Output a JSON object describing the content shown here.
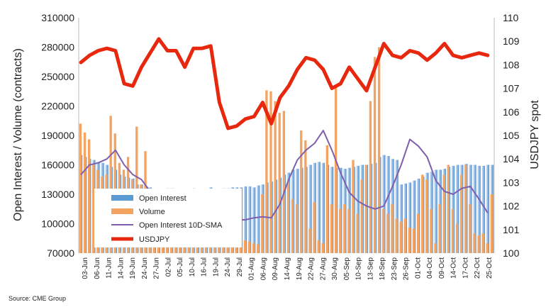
{
  "chart_data": {
    "type": "bar+line",
    "title": "",
    "ylabel_left": "Open Interest / Volume (contracts)",
    "ylabel_right": "USDJPY spot",
    "ylim_left": [
      70000,
      310000
    ],
    "ylim_right": [
      100,
      110
    ],
    "yticks_left": [
      "70000",
      "100000",
      "130000",
      "160000",
      "190000",
      "220000",
      "250000",
      "280000",
      "310000"
    ],
    "yticks_right": [
      "100",
      "101",
      "102",
      "103",
      "104",
      "105",
      "106",
      "107",
      "108",
      "109",
      "110"
    ],
    "x_tick_labels": [
      "03-Jun",
      "06-Jun",
      "11-Jun",
      "14-Jun",
      "19-Jun",
      "24-Jun",
      "27-Jun",
      "02-Jul",
      "05-Jul",
      "10-Jul",
      "16-Jul",
      "19-Jul",
      "24-Jul",
      "29-Jul",
      "01-Aug",
      "06-Aug",
      "09-Aug",
      "14-Aug",
      "19-Aug",
      "22-Aug",
      "27-Aug",
      "30-Aug",
      "05-Sep",
      "10-Sep",
      "13-Sep",
      "18-Sep",
      "23-Sep",
      "26-Sep",
      "01-Oct",
      "04-Oct",
      "09-Oct",
      "14-Oct",
      "17-Oct",
      "22-Oct",
      "25-Oct"
    ],
    "legend_placement": "lower-left",
    "series": [
      {
        "name": "Open Interest",
        "kind": "bar",
        "color": "#5b9bd5",
        "values": [
          170000,
          168000,
          166000,
          165000,
          163000,
          162000,
          160000,
          158000,
          155000,
          150000,
          148000,
          147000,
          146000,
          140000,
          140000,
          138000,
          137000,
          135000,
          134000,
          133000,
          136000,
          136000,
          135000,
          135000,
          134000,
          135000,
          136000,
          134000,
          135000,
          135000,
          137000,
          133000,
          134000,
          136000,
          136000,
          137000,
          137000,
          137000,
          138000,
          138000,
          137000,
          139000,
          140000,
          142000,
          143000,
          145000,
          147000,
          150000,
          152000,
          155000,
          156000,
          157000,
          158000,
          160000,
          162000,
          163000,
          162000,
          160000,
          158000,
          157000,
          157000,
          156000,
          157000,
          158000,
          159000,
          160000,
          160000,
          161000,
          162000,
          168000,
          170000,
          169000,
          166000,
          165000,
          140000,
          141000,
          142000,
          144000,
          146000,
          148000,
          152000,
          153000,
          155000,
          155000,
          156000,
          158000,
          159000,
          160000,
          160000,
          161000,
          160000,
          160000,
          159000,
          159000,
          160000,
          160000
        ]
      },
      {
        "name": "Volume",
        "kind": "bar",
        "color": "#f4a460",
        "values": [
          202000,
          193000,
          186000,
          160000,
          155000,
          148000,
          150000,
          210000,
          192000,
          162000,
          155000,
          168000,
          145000,
          199000,
          140000,
          174000,
          120000,
          110000,
          118000,
          96000,
          102000,
          100000,
          98000,
          92000,
          88000,
          85000,
          80000,
          84000,
          82000,
          80000,
          78000,
          81000,
          80000,
          82000,
          76000,
          80000,
          79000,
          85000,
          83000,
          82000,
          80000,
          79000,
          130000,
          236000,
          235000,
          225000,
          213000,
          215000,
          143000,
          125000,
          120000,
          195000,
          185000,
          95000,
          122000,
          83000,
          80000,
          180000,
          120000,
          240000,
          115000,
          120000,
          115000,
          165000,
          110000,
          145000,
          160000,
          225000,
          270000,
          280000,
          115000,
          110000,
          120000,
          105000,
          102000,
          105000,
          96000,
          95000,
          110000,
          150000,
          145000,
          115000,
          80000,
          120000,
          150000,
          160000,
          115000,
          100000,
          150000,
          160000,
          120000,
          90000,
          88000,
          90000,
          80000,
          130000
        ]
      },
      {
        "name": "Open Interest 10D-SMA",
        "kind": "line",
        "color": "#7e5fad",
        "x": [
          0,
          2,
          4,
          6,
          8,
          10,
          12,
          14,
          16,
          18,
          20,
          22,
          24,
          26,
          28,
          30,
          32,
          34,
          36,
          38,
          40,
          42,
          44,
          46,
          48,
          50,
          52,
          54,
          56,
          58,
          60,
          62,
          64,
          66,
          68,
          70,
          72,
          74,
          76,
          78,
          80,
          82,
          84,
          86,
          88,
          90,
          92,
          94
        ],
        "values": [
          150000,
          160000,
          162000,
          166000,
          175000,
          160000,
          150000,
          145000,
          133000,
          125000,
          120000,
          115000,
          112000,
          110000,
          108000,
          106000,
          105000,
          104000,
          104000,
          104000,
          106000,
          107000,
          106000,
          120000,
          145000,
          165000,
          175000,
          182000,
          195000,
          175000,
          152000,
          132000,
          123000,
          118000,
          115000,
          118000,
          138000,
          160000,
          186000,
          179000,
          168000,
          144000,
          133000,
          130000,
          136000,
          138000,
          125000,
          111000
        ]
      },
      {
        "name": "USDJPY",
        "kind": "line",
        "axis": "right",
        "color": "#e8280e",
        "x": [
          0,
          2,
          4,
          6,
          8,
          10,
          12,
          14,
          16,
          18,
          20,
          22,
          24,
          26,
          28,
          30,
          32,
          34,
          36,
          38,
          40,
          42,
          44,
          46,
          48,
          50,
          52,
          54,
          56,
          58,
          60,
          62,
          64,
          66,
          68,
          70,
          72,
          74,
          76,
          78,
          80,
          82,
          84,
          86,
          88,
          90,
          92,
          94
        ],
        "values": [
          108.1,
          108.4,
          108.6,
          108.7,
          108.6,
          107.2,
          107.1,
          107.9,
          108.5,
          109.1,
          108.6,
          108.6,
          107.9,
          108.7,
          108.7,
          108.8,
          106.4,
          105.3,
          105.4,
          105.7,
          105.8,
          106.4,
          105.5,
          106.6,
          107.1,
          107.8,
          108.3,
          108.2,
          107.8,
          107.0,
          107.2,
          107.9,
          107.4,
          106.9,
          107.9,
          108.9,
          108.4,
          108.3,
          108.6,
          108.5,
          108.2,
          108.5,
          108.9,
          108.4,
          108.3,
          108.4,
          108.5,
          108.4
        ]
      }
    ]
  },
  "source": "Source: CME Group"
}
